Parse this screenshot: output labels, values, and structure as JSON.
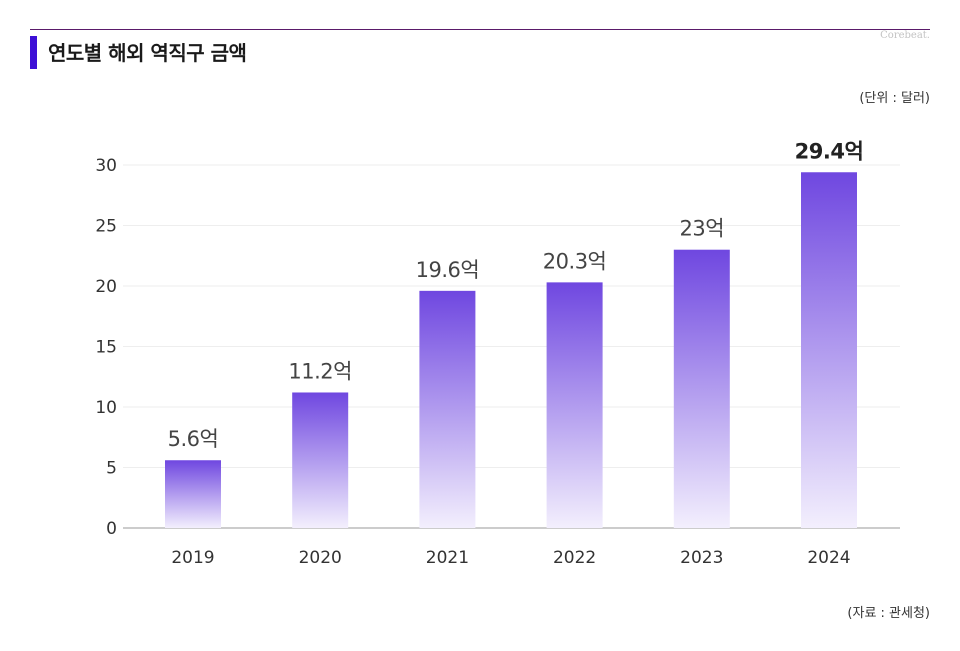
{
  "header": {
    "title": "연도별 해외 역직구 금액",
    "brand": "Corebeat.",
    "unit_note": "(단위 : 달러)"
  },
  "footer": {
    "source_note": "(자료 : 관세청)"
  },
  "colors": {
    "accent": "#3d10d6",
    "bar_top": "#6f47e0",
    "bar_bottom": "#f3effd",
    "grid": "#eeeeee",
    "axis": "#999999"
  },
  "chart_data": {
    "type": "bar",
    "categories": [
      "2019",
      "2020",
      "2021",
      "2022",
      "2023",
      "2024"
    ],
    "values": [
      5.6,
      11.2,
      19.6,
      20.3,
      23,
      29.4
    ],
    "data_labels": [
      "5.6억",
      "11.2억",
      "19.6억",
      "20.3억",
      "23억",
      "29.4억"
    ],
    "highlight_index": 5,
    "title": "연도별 해외 역직구 금액",
    "xlabel": "",
    "ylabel": "",
    "ylim": [
      0,
      30
    ],
    "yticks": [
      0,
      5,
      10,
      15,
      20,
      25,
      30
    ],
    "grid": true,
    "legend": "none"
  }
}
